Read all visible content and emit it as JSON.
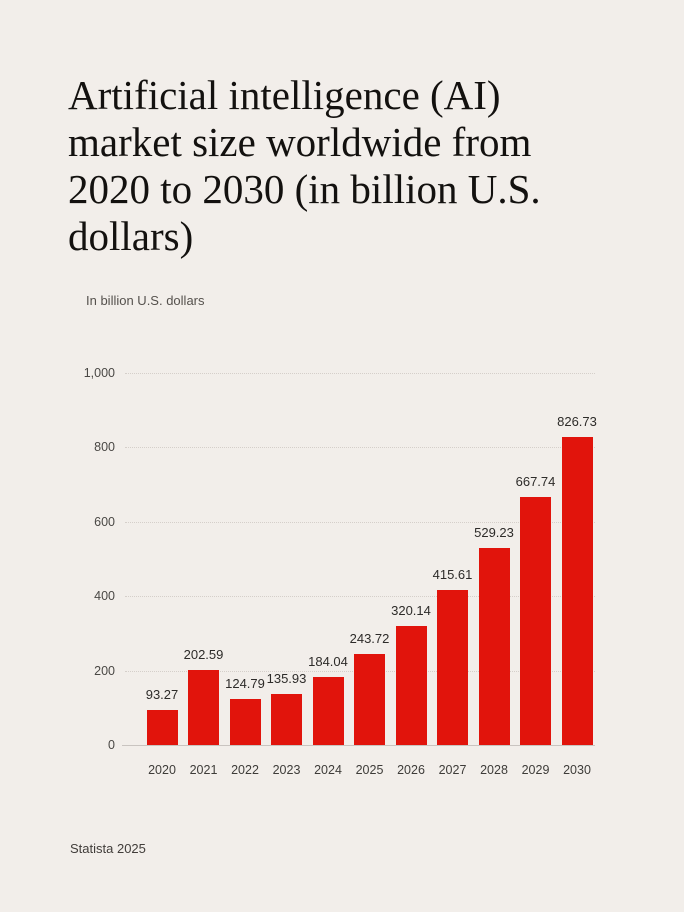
{
  "title": "Artificial intelligence (AI) market size worldwide from 2020 to 2030 (in billion U.S. dollars)",
  "subtitle": "In billion U.S. dollars",
  "footer": "Statista 2025",
  "colors": {
    "background": "#f2eeea",
    "bar": "#e1140c",
    "title_text": "#13110f",
    "subtitle_text": "#55514d",
    "value_label_text": "#2d2b29",
    "y_tick_text": "#4a4845",
    "x_tick_text": "#3e3c39",
    "footer_text": "#413d3a",
    "gridline": "#d5cfca",
    "axis_line": "#c9c4c0"
  },
  "chart_data": {
    "type": "bar",
    "title": "Artificial intelligence (AI) market size worldwide from 2020 to 2030 (in billion U.S. dollars)",
    "ylabel": "In billion U.S. dollars",
    "xlabel": "",
    "categories": [
      "2020",
      "2021",
      "2022",
      "2023",
      "2024",
      "2025",
      "2026",
      "2027",
      "2028",
      "2029",
      "2030"
    ],
    "values": [
      93.27,
      202.59,
      124.79,
      135.93,
      184.04,
      243.72,
      320.14,
      415.61,
      529.23,
      667.74,
      826.73
    ],
    "value_labels": [
      "93.27",
      "202.59",
      "124.79",
      "135.93",
      "184.04",
      "243.72",
      "320.14",
      "415.61",
      "529.23",
      "667.74",
      "826.73"
    ],
    "ylim": [
      0,
      1000
    ],
    "yticks": [
      0,
      200,
      400,
      600,
      800,
      1000
    ],
    "ytick_labels": [
      "0",
      "200",
      "400",
      "600",
      "800",
      "1,000"
    ],
    "grid": "horizontal-dotted",
    "legend": "none",
    "bar_color": "#e1140c"
  }
}
